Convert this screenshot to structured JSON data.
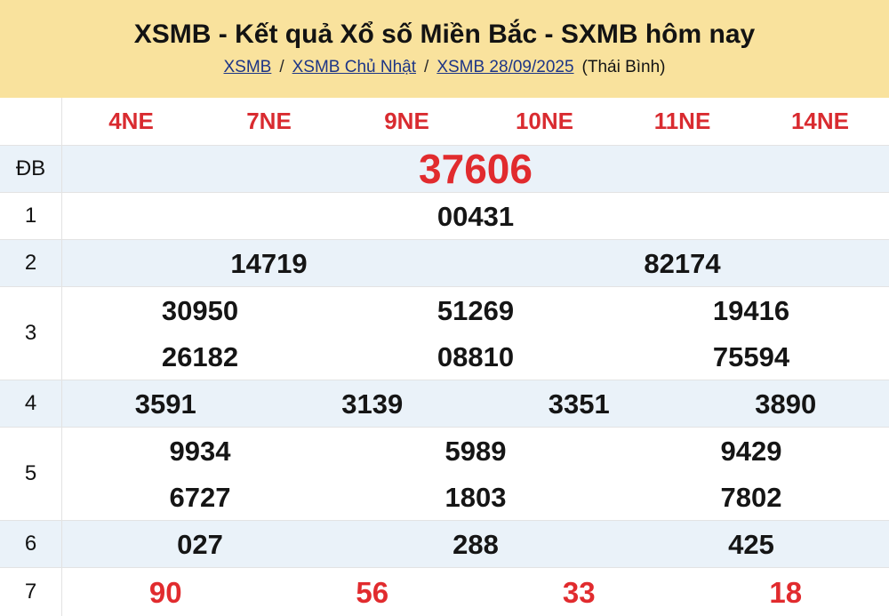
{
  "header": {
    "title": "XSMB - Kết quả Xổ số Miền Bắc - SXMB hôm nay",
    "separator": "/",
    "breadcrumb": [
      {
        "label": "XSMB"
      },
      {
        "label": "XSMB Chủ Nhật"
      },
      {
        "label": "XSMB 28/09/2025"
      }
    ],
    "province": "(Thái Bình)"
  },
  "colors": {
    "header_bg": "#F9E29D",
    "row_shade": "#EAF2F9",
    "accent_red": "#E12B2E",
    "link_blue": "#1D3586",
    "border_gray": "#E3E3E3"
  },
  "table": {
    "columns": [
      "4NE",
      "7NE",
      "9NE",
      "10NE",
      "11NE",
      "14NE"
    ],
    "rows": [
      {
        "label": "ĐB",
        "lines": [
          [
            "37606"
          ]
        ]
      },
      {
        "label": "1",
        "lines": [
          [
            "00431"
          ]
        ]
      },
      {
        "label": "2",
        "lines": [
          [
            "14719",
            "82174"
          ]
        ]
      },
      {
        "label": "3",
        "lines": [
          [
            "30950",
            "51269",
            "19416"
          ],
          [
            "26182",
            "08810",
            "75594"
          ]
        ]
      },
      {
        "label": "4",
        "lines": [
          [
            "3591",
            "3139",
            "3351",
            "3890"
          ]
        ]
      },
      {
        "label": "5",
        "lines": [
          [
            "9934",
            "5989",
            "9429"
          ],
          [
            "6727",
            "1803",
            "7802"
          ]
        ]
      },
      {
        "label": "6",
        "lines": [
          [
            "027",
            "288",
            "425"
          ]
        ]
      },
      {
        "label": "7",
        "lines": [
          [
            "90",
            "56",
            "33",
            "18"
          ]
        ]
      }
    ]
  }
}
